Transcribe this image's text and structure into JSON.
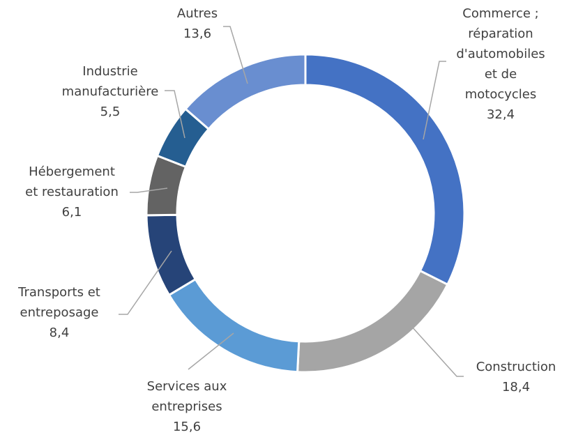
{
  "chart_data": {
    "type": "donut",
    "categories": [
      "Commerce ;\nréparation\nd'automobiles\net de\nmotocycles",
      "Construction",
      "Services aux\nentreprises",
      "Transports et\nentreposage",
      "Hébergement\net restauration",
      "Industrie\nmanufacturière",
      "Autres"
    ],
    "values": [
      32.4,
      18.4,
      15.6,
      8.4,
      6.1,
      5.5,
      13.6
    ],
    "value_labels": [
      "32,4",
      "18,4",
      "15,6",
      "8,4",
      "6,1",
      "5,5",
      "13,6"
    ],
    "colors": [
      "#4472c4",
      "#a5a5a5",
      "#5b9bd5",
      "#264478",
      "#636363",
      "#255e91",
      "#698ed0"
    ]
  }
}
